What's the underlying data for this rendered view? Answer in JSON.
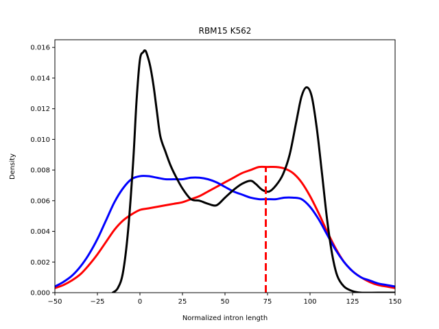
{
  "chart_data": {
    "type": "line",
    "title": "RBM15 K562",
    "xlabel": "Normalized intron length",
    "ylabel": "Density",
    "xlim": [
      -50,
      150
    ],
    "ylim": [
      0,
      0.0165
    ],
    "x_ticks": [
      -50,
      -25,
      0,
      25,
      50,
      75,
      100,
      125,
      150
    ],
    "x_tick_labels": [
      "−50",
      "−25",
      "0",
      "25",
      "50",
      "75",
      "100",
      "125",
      "150"
    ],
    "y_ticks": [
      0,
      0.002,
      0.004,
      0.006,
      0.008,
      0.01,
      0.012,
      0.014,
      0.016
    ],
    "y_tick_labels": [
      "0.000",
      "0.002",
      "0.004",
      "0.006",
      "0.008",
      "0.010",
      "0.012",
      "0.014",
      "0.016"
    ],
    "grid": false,
    "series": [
      {
        "color": "#ff0000",
        "x": [
          -50,
          -45,
          -40,
          -35,
          -30,
          -25,
          -20,
          -15,
          -10,
          -5,
          0,
          5,
          10,
          15,
          20,
          25,
          30,
          35,
          40,
          45,
          50,
          55,
          60,
          65,
          70,
          75,
          80,
          85,
          90,
          95,
          100,
          105,
          110,
          115,
          120,
          125,
          130,
          135,
          140,
          145,
          150
        ],
        "y": [
          0.0003,
          0.0005,
          0.0008,
          0.0012,
          0.0018,
          0.0025,
          0.0033,
          0.0041,
          0.0047,
          0.0051,
          0.0054,
          0.0055,
          0.0056,
          0.0057,
          0.0058,
          0.0059,
          0.0061,
          0.0063,
          0.0066,
          0.0069,
          0.0072,
          0.0075,
          0.0078,
          0.008,
          0.0082,
          0.0082,
          0.0082,
          0.0081,
          0.0078,
          0.0072,
          0.0063,
          0.0052,
          0.004,
          0.0029,
          0.002,
          0.0014,
          0.001,
          0.0007,
          0.0005,
          0.0004,
          0.0003
        ]
      },
      {
        "color": "#0000ff",
        "x": [
          -50,
          -45,
          -40,
          -35,
          -30,
          -25,
          -20,
          -15,
          -10,
          -5,
          0,
          5,
          10,
          15,
          20,
          25,
          30,
          35,
          40,
          45,
          50,
          55,
          60,
          65,
          70,
          75,
          80,
          85,
          90,
          95,
          100,
          105,
          110,
          115,
          120,
          125,
          130,
          135,
          140,
          145,
          150
        ],
        "y": [
          0.0004,
          0.0007,
          0.0011,
          0.0017,
          0.0025,
          0.0035,
          0.0047,
          0.0059,
          0.0068,
          0.0074,
          0.0076,
          0.0076,
          0.0075,
          0.0074,
          0.0074,
          0.0074,
          0.0075,
          0.0075,
          0.0074,
          0.0072,
          0.0069,
          0.0066,
          0.0064,
          0.0062,
          0.0061,
          0.0061,
          0.0061,
          0.0062,
          0.0062,
          0.0061,
          0.0056,
          0.0048,
          0.0038,
          0.0028,
          0.002,
          0.0014,
          0.001,
          0.0008,
          0.0006,
          0.0005,
          0.0004
        ]
      },
      {
        "color": "#000000",
        "x": [
          -16,
          -13,
          -10,
          -7,
          -4,
          -2,
          0,
          2,
          3,
          4,
          6,
          8,
          10,
          12,
          15,
          18,
          21,
          25,
          30,
          35,
          40,
          45,
          50,
          55,
          60,
          65,
          68,
          72,
          76,
          80,
          84,
          88,
          92,
          95,
          98,
          101,
          104,
          107,
          110,
          113,
          116,
          120,
          125,
          130,
          140,
          150
        ],
        "y": [
          0.0,
          0.0003,
          0.0013,
          0.004,
          0.0085,
          0.0125,
          0.0152,
          0.0157,
          0.0158,
          0.0156,
          0.0148,
          0.0135,
          0.0118,
          0.0102,
          0.0092,
          0.0083,
          0.0076,
          0.0068,
          0.0061,
          0.006,
          0.0058,
          0.0057,
          0.0062,
          0.0067,
          0.0071,
          0.0073,
          0.0071,
          0.0067,
          0.0066,
          0.007,
          0.0077,
          0.009,
          0.0112,
          0.0128,
          0.0134,
          0.0128,
          0.0107,
          0.0078,
          0.0048,
          0.0025,
          0.0011,
          0.0004,
          0.0001,
          0.0,
          0.0,
          0.0
        ]
      }
    ],
    "vline": {
      "x": 74,
      "y_top": 0.0082,
      "color": "#ff0000",
      "style": "dashed"
    }
  }
}
